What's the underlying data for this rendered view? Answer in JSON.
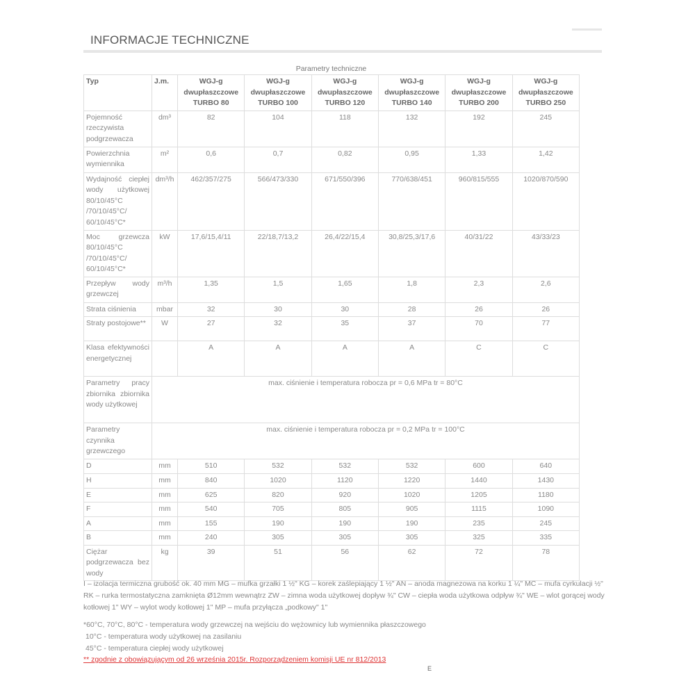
{
  "page": {
    "title": "INFORMACJE TECHNICZNE",
    "caption": "Parametry techniczne",
    "page_mark": "E"
  },
  "table": {
    "headers": [
      "Typ",
      "J.m.",
      "WGJ-g dwupłaszczowe TURBO 80",
      "WGJ-g dwupłaszczowe TURBO 100",
      "WGJ-g dwupłaszczowe TURBO 120",
      "WGJ-g dwupłaszczowe TURBO 140",
      "WGJ-g dwupłaszczowe TURBO 200",
      "WGJ-g dwupłaszczowe TURBO 250"
    ],
    "rows": [
      {
        "param": "Pojemność rzeczywista podgrzewacza",
        "unit": "dm³",
        "values": [
          "82",
          "104",
          "118",
          "132",
          "192",
          "245"
        ]
      },
      {
        "param": "Powierzchnia wymiennika",
        "unit": "m²",
        "values": [
          "0,6",
          "0,7",
          "0,82",
          "0,95",
          "1,33",
          "1,42"
        ]
      },
      {
        "param": "Wydajność ciepłej wody użytkowej 80/10/45°C /70/10/45°C/ 60/10/45°C*",
        "unit": "dm³/h",
        "values": [
          "462/357/275",
          "566/473/330",
          "671/550/396",
          "770/638/451",
          "960/815/555",
          "1020/870/590"
        ]
      },
      {
        "param": "Moc grzewcza 80/10/45°C /70/10/45°C/ 60/10/45°C*",
        "unit": "kW",
        "values": [
          "17,6/15,4/11",
          "22/18,7/13,2",
          "26,4/22/15,4",
          "30,8/25,3/17,6",
          "40/31/22",
          "43/33/23"
        ]
      },
      {
        "param": "Przepływ wody grzewczej",
        "unit": "m³/h",
        "values": [
          "1,35",
          "1,5",
          "1,65",
          "1,8",
          "2,3",
          "2,6"
        ]
      },
      {
        "param": "Strata ciśnienia",
        "unit": "mbar",
        "values": [
          "32",
          "30",
          "30",
          "28",
          "26",
          "26"
        ]
      },
      {
        "param": "Straty postojowe**",
        "unit": "W",
        "values": [
          "27",
          "32",
          "35",
          "37",
          "70",
          "77"
        ]
      },
      {
        "param": "Klasa efektywności energetycznej",
        "unit": "",
        "values": [
          "A",
          "A",
          "A",
          "A",
          "C",
          "C"
        ]
      },
      {
        "param": "Parametry pracy zbiornika zbiornika wody użytkowej",
        "span": "max. ciśnienie i temperatura robocza pr = 0,6 MPa tr = 80°C"
      },
      {
        "param": "Parametry czynnika grzewczego",
        "span": "max. ciśnienie i temperatura robocza pr = 0,2 MPa tr = 100°C"
      },
      {
        "param": "D",
        "unit": "mm",
        "values": [
          "510",
          "532",
          "532",
          "532",
          "600",
          "640"
        ]
      },
      {
        "param": "H",
        "unit": "mm",
        "values": [
          "840",
          "1020",
          "1120",
          "1220",
          "1440",
          "1430"
        ]
      },
      {
        "param": "E",
        "unit": "mm",
        "values": [
          "625",
          "820",
          "920",
          "1020",
          "1205",
          "1180"
        ]
      },
      {
        "param": "F",
        "unit": "mm",
        "values": [
          "540",
          "705",
          "805",
          "905",
          "1115",
          "1090"
        ]
      },
      {
        "param": "A",
        "unit": "mm",
        "values": [
          "155",
          "190",
          "190",
          "190",
          "235",
          "245"
        ]
      },
      {
        "param": "B",
        "unit": "mm",
        "values": [
          "240",
          "305",
          "305",
          "305",
          "325",
          "335"
        ]
      },
      {
        "param": "Ciężar podgrzewacza bez wody",
        "unit": "kg",
        "values": [
          "39",
          "51",
          "56",
          "62",
          "72",
          "78"
        ]
      }
    ]
  },
  "notes": {
    "legend": "I – izolacja termiczna grubość ok. 40 mm MG – mufka grzałki 1 ½\" KG – korek zaślepiający 1 ½\" AN – anoda magnezowa na korku 1 ¼\" MC – mufa cyrkulacji ½\" RK – rurka termostatyczna zamknięta Ø12mm wewnątrz ZW – zimna woda użytkowej dopływ ¾\" CW – ciepła woda użytkowa odpływ ¾\" WE – wlot gorącej wody kotłowej 1\" WY – wylot wody kotłowej 1\" MP – mufa przyłącza „podkowy\" 1\"",
    "fn1": "*60°C, 70°C, 80°C - temperatura wody grzewczej na wejściu do wężownicy lub wymiennika płaszczowego",
    "fn2": "10°C - temperatura wody użytkowej na zasilaniu",
    "fn3": "45°C - temperatura ciepłej wody użytkowej",
    "fn4": "** zgodnie z obowiązującym od 26 września 2015r. Rozporządzeniem komisji UE nr 812/2013"
  },
  "colors": {
    "link": "#dd3333"
  }
}
